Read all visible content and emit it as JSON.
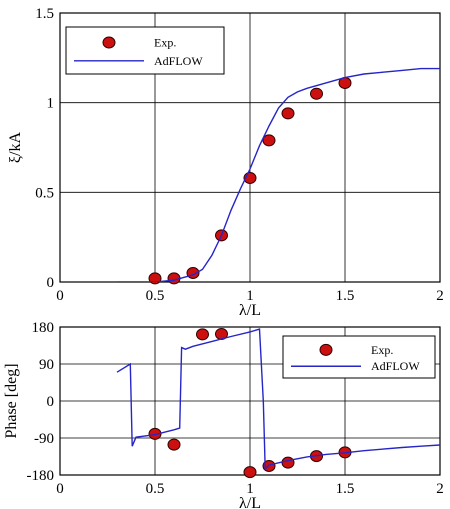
{
  "chart_data": [
    {
      "type": "line",
      "ylabel": "ξ/kA",
      "xlabel": "λ/L",
      "xlim": [
        0,
        2
      ],
      "ylim": [
        0,
        1.5
      ],
      "x_ticks": [
        "0",
        "0.5",
        "1",
        "1.5",
        "2"
      ],
      "y_ticks": [
        "0",
        "0.5",
        "1",
        "1.5"
      ],
      "grid": true,
      "legend_position": "top-left",
      "legend": [
        "Exp.",
        "AdFLOW"
      ],
      "series": [
        {
          "name": "Exp.",
          "style": "markers",
          "points": [
            [
              0.5,
              0.02
            ],
            [
              0.6,
              0.02
            ],
            [
              0.7,
              0.05
            ],
            [
              0.85,
              0.26
            ],
            [
              1.0,
              0.58
            ],
            [
              1.1,
              0.79
            ],
            [
              1.2,
              0.94
            ],
            [
              1.35,
              1.05
            ],
            [
              1.5,
              1.11
            ]
          ]
        },
        {
          "name": "AdFLOW",
          "style": "line",
          "points": [
            [
              0.3,
              0.0
            ],
            [
              0.5,
              0.0
            ],
            [
              0.6,
              0.01
            ],
            [
              0.7,
              0.04
            ],
            [
              0.75,
              0.07
            ],
            [
              0.8,
              0.15
            ],
            [
              0.85,
              0.26
            ],
            [
              0.9,
              0.4
            ],
            [
              0.95,
              0.52
            ],
            [
              1.0,
              0.63
            ],
            [
              1.05,
              0.76
            ],
            [
              1.1,
              0.87
            ],
            [
              1.15,
              0.97
            ],
            [
              1.2,
              1.03
            ],
            [
              1.25,
              1.06
            ],
            [
              1.3,
              1.08
            ],
            [
              1.4,
              1.11
            ],
            [
              1.5,
              1.14
            ],
            [
              1.6,
              1.16
            ],
            [
              1.7,
              1.17
            ],
            [
              1.8,
              1.18
            ],
            [
              1.9,
              1.19
            ],
            [
              2.0,
              1.19
            ]
          ]
        }
      ]
    },
    {
      "type": "line",
      "ylabel": "Phase [deg]",
      "xlabel": "λ/L",
      "xlim": [
        0,
        2
      ],
      "ylim": [
        -180,
        180
      ],
      "x_ticks": [
        "0",
        "0.5",
        "1",
        "1.5",
        "2"
      ],
      "y_ticks": [
        "-180",
        "-90",
        "0",
        "90",
        "180"
      ],
      "grid": true,
      "legend_position": "top-right",
      "legend": [
        "Exp.",
        "AdFLOW"
      ],
      "series": [
        {
          "name": "Exp.",
          "style": "markers",
          "points": [
            [
              0.5,
              -80
            ],
            [
              0.6,
              -106
            ],
            [
              0.75,
              162
            ],
            [
              0.85,
              163
            ],
            [
              1.0,
              -173
            ],
            [
              1.1,
              -158
            ],
            [
              1.2,
              -150
            ],
            [
              1.35,
              -134
            ],
            [
              1.5,
              -125
            ]
          ]
        },
        {
          "name": "AdFLOW",
          "style": "line",
          "points": [
            [
              0.3,
              70
            ],
            [
              0.37,
              90
            ],
            [
              0.38,
              -110
            ],
            [
              0.4,
              -88
            ],
            [
              0.5,
              -82
            ],
            [
              0.55,
              -76
            ],
            [
              0.6,
              -70
            ],
            [
              0.63,
              -66
            ],
            [
              0.64,
              130
            ],
            [
              0.66,
              126
            ],
            [
              0.7,
              133
            ],
            [
              0.8,
              145
            ],
            [
              0.9,
              157
            ],
            [
              1.0,
              168
            ],
            [
              1.05,
              175
            ],
            [
              1.07,
              0
            ],
            [
              1.08,
              -165
            ],
            [
              1.1,
              -156
            ],
            [
              1.2,
              -145
            ],
            [
              1.3,
              -136
            ],
            [
              1.4,
              -130
            ],
            [
              1.5,
              -126
            ],
            [
              1.6,
              -121
            ],
            [
              1.7,
              -117
            ],
            [
              1.8,
              -113
            ],
            [
              1.9,
              -110
            ],
            [
              2.0,
              -107
            ]
          ]
        }
      ]
    }
  ]
}
